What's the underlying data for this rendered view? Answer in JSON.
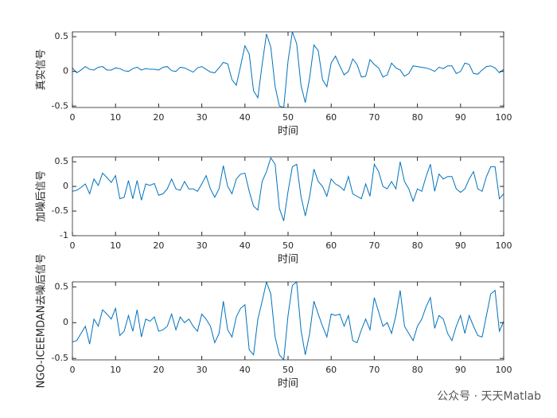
{
  "chart_data": [
    {
      "type": "line",
      "ylabel": "真实信号",
      "xlabel": "时间",
      "x": [
        0,
        1,
        2,
        3,
        4,
        5,
        6,
        7,
        8,
        9,
        10,
        11,
        12,
        13,
        14,
        15,
        16,
        17,
        18,
        19,
        20,
        21,
        22,
        23,
        24,
        25,
        26,
        27,
        28,
        29,
        30,
        31,
        32,
        33,
        34,
        35,
        36,
        37,
        38,
        39,
        40,
        41,
        42,
        43,
        44,
        45,
        46,
        47,
        48,
        49,
        50,
        51,
        52,
        53,
        54,
        55,
        56,
        57,
        58,
        59,
        60,
        61,
        62,
        63,
        64,
        65,
        66,
        67,
        68,
        69,
        70,
        71,
        72,
        73,
        74,
        75,
        76,
        77,
        78,
        79,
        80,
        81,
        82,
        83,
        84,
        85,
        86,
        87,
        88,
        89,
        90,
        91,
        92,
        93,
        94,
        95,
        96,
        97,
        98,
        99,
        100
      ],
      "color": "#0072bd",
      "values": [
        0.05,
        -0.02,
        0.02,
        0.07,
        0.03,
        0.02,
        0.06,
        0.07,
        0.02,
        0.02,
        0.05,
        0.04,
        0.01,
        0,
        0.04,
        0.06,
        0.02,
        0.04,
        0.03,
        0.03,
        0.02,
        0.06,
        0.07,
        0.01,
        0,
        0.06,
        0.05,
        0.02,
        -0.01,
        0.05,
        0.07,
        0.03,
        -0.01,
        -0.02,
        0.05,
        0.13,
        0.11,
        -0.12,
        -0.2,
        0.08,
        0.37,
        0.25,
        -0.28,
        -0.38,
        0.1,
        0.54,
        0.35,
        -0.22,
        -0.5,
        -0.52,
        0.15,
        0.57,
        0.4,
        -0.2,
        -0.45,
        -0.1,
        0.38,
        0.3,
        -0.12,
        -0.22,
        0.12,
        0.22,
        0.08,
        -0.05,
        0,
        0.18,
        0.1,
        -0.08,
        -0.07,
        0.17,
        0.1,
        0.05,
        -0.08,
        -0.05,
        0.12,
        0.05,
        0.02,
        -0.07,
        -0.03,
        0.08,
        0.07,
        0.06,
        0.05,
        0.03,
        0,
        0.06,
        0.04,
        0.08,
        0.08,
        -0.03,
        0,
        0.12,
        0.1,
        -0.03,
        -0.04,
        0.02,
        0.07,
        0.08,
        0.05,
        -0.02,
        0.03
      ],
      "xlim": [
        0,
        100
      ],
      "xticks": [
        0,
        10,
        20,
        30,
        40,
        50,
        60,
        70,
        80,
        90,
        100
      ],
      "ylim": [
        -0.52,
        0.57
      ],
      "yticks": [
        -0.5,
        0,
        0.5
      ]
    },
    {
      "type": "line",
      "ylabel": "加噪后信号",
      "xlabel": "时间",
      "x": [
        0,
        1,
        2,
        3,
        4,
        5,
        6,
        7,
        8,
        9,
        10,
        11,
        12,
        13,
        14,
        15,
        16,
        17,
        18,
        19,
        20,
        21,
        22,
        23,
        24,
        25,
        26,
        27,
        28,
        29,
        30,
        31,
        32,
        33,
        34,
        35,
        36,
        37,
        38,
        39,
        40,
        41,
        42,
        43,
        44,
        45,
        46,
        47,
        48,
        49,
        50,
        51,
        52,
        53,
        54,
        55,
        56,
        57,
        58,
        59,
        60,
        61,
        62,
        63,
        64,
        65,
        66,
        67,
        68,
        69,
        70,
        71,
        72,
        73,
        74,
        75,
        76,
        77,
        78,
        79,
        80,
        81,
        82,
        83,
        84,
        85,
        86,
        87,
        88,
        89,
        90,
        91,
        92,
        93,
        94,
        95,
        96,
        97,
        98,
        99,
        100
      ],
      "color": "#0072bd",
      "values": [
        -0.1,
        -0.08,
        -0.02,
        0.05,
        -0.15,
        0.15,
        0.02,
        0.27,
        0.18,
        0.08,
        0.22,
        -0.25,
        -0.22,
        0.12,
        -0.25,
        0.12,
        -0.28,
        0.05,
        0.02,
        0.06,
        -0.18,
        -0.15,
        -0.05,
        0.15,
        -0.05,
        -0.08,
        0.1,
        -0.05,
        -0.05,
        -0.1,
        0.05,
        0.22,
        -0.05,
        -0.22,
        -0.05,
        0.42,
        0,
        -0.15,
        0.15,
        0.25,
        0.27,
        -0.1,
        -0.4,
        -0.48,
        0.1,
        0.3,
        0.58,
        0.45,
        -0.45,
        -0.7,
        -0.1,
        0.4,
        0.45,
        -0.2,
        -0.6,
        -0.2,
        0.35,
        0.1,
        0,
        -0.2,
        0.15,
        0.05,
        0,
        -0.08,
        0.2,
        -0.15,
        -0.2,
        -0.25,
        0.05,
        -0.2,
        0.45,
        0.3,
        0,
        -0.05,
        0.1,
        -0.05,
        0.5,
        0.1,
        -0.05,
        -0.3,
        -0.05,
        -0.1,
        0.2,
        0.45,
        -0.1,
        0.25,
        0.15,
        0.2,
        0.2,
        -0.05,
        -0.12,
        -0.05,
        0.15,
        0.3,
        -0.05,
        -0.1,
        0.2,
        0.4,
        0.4,
        -0.25,
        -0.15
      ],
      "xlim": [
        0,
        100
      ],
      "xticks": [
        0,
        10,
        20,
        30,
        40,
        50,
        60,
        70,
        80,
        90,
        100
      ],
      "ylim": [
        -1,
        0.6
      ],
      "yticks": [
        -1,
        -0.5,
        0,
        0.5
      ]
    },
    {
      "type": "line",
      "ylabel": "NGO-ICEEMDAN去噪后信号",
      "xlabel": "时间",
      "x": [
        0,
        1,
        2,
        3,
        4,
        5,
        6,
        7,
        8,
        9,
        10,
        11,
        12,
        13,
        14,
        15,
        16,
        17,
        18,
        19,
        20,
        21,
        22,
        23,
        24,
        25,
        26,
        27,
        28,
        29,
        30,
        31,
        32,
        33,
        34,
        35,
        36,
        37,
        38,
        39,
        40,
        41,
        42,
        43,
        44,
        45,
        46,
        47,
        48,
        49,
        50,
        51,
        52,
        53,
        54,
        55,
        56,
        57,
        58,
        59,
        60,
        61,
        62,
        63,
        64,
        65,
        66,
        67,
        68,
        69,
        70,
        71,
        72,
        73,
        74,
        75,
        76,
        77,
        78,
        79,
        80,
        81,
        82,
        83,
        84,
        85,
        86,
        87,
        88,
        89,
        90,
        91,
        92,
        93,
        94,
        95,
        96,
        97,
        98,
        99,
        100
      ],
      "color": "#0072bd",
      "values": [
        -0.27,
        -0.25,
        -0.15,
        -0.05,
        -0.3,
        0.05,
        -0.05,
        0.18,
        0.12,
        0.05,
        0.2,
        -0.18,
        -0.12,
        0.1,
        -0.12,
        0.18,
        -0.2,
        0.05,
        0.02,
        0.08,
        -0.12,
        -0.1,
        -0.05,
        0.12,
        -0.1,
        0.08,
        0,
        0.05,
        -0.05,
        -0.12,
        0.12,
        0.05,
        -0.05,
        -0.28,
        -0.15,
        0.3,
        -0.1,
        -0.2,
        0.08,
        0.2,
        0.25,
        -0.38,
        -0.45,
        0.05,
        0.3,
        0.57,
        0.4,
        -0.2,
        -0.45,
        -0.52,
        0.1,
        0.52,
        0.57,
        -0.1,
        -0.45,
        -0.15,
        0.3,
        0.12,
        -0.05,
        -0.2,
        0.12,
        0.1,
        0.12,
        -0.05,
        0.1,
        -0.25,
        -0.28,
        -0.1,
        0.05,
        -0.1,
        0.35,
        0.15,
        -0.05,
        0,
        -0.15,
        0.1,
        0.45,
        -0.05,
        -0.15,
        -0.25,
        -0.05,
        0.05,
        0.22,
        0.35,
        -0.08,
        0.1,
        0.05,
        -0.15,
        -0.25,
        -0.05,
        0.1,
        -0.15,
        0.1,
        -0.05,
        -0.18,
        -0.2,
        0.1,
        0.4,
        0.45,
        -0.12,
        0.02
      ],
      "xlim": [
        0,
        100
      ],
      "xticks": [
        0,
        10,
        20,
        30,
        40,
        50,
        60,
        70,
        80,
        90,
        100
      ],
      "ylim": [
        -0.52,
        0.57
      ],
      "yticks": [
        -0.5,
        0,
        0.5
      ]
    }
  ],
  "watermark": "公众号 · 天天Matlab"
}
